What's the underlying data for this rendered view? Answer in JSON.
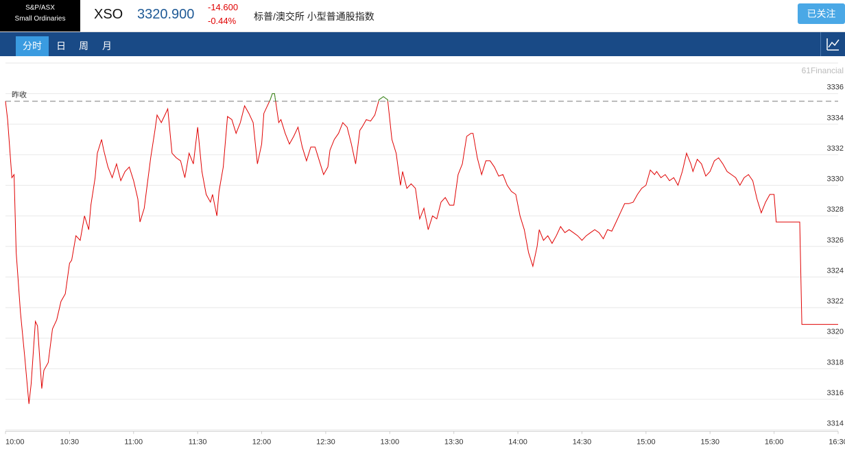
{
  "header": {
    "badge": [
      "S&P/ASX",
      "Small Ordinaries"
    ],
    "symbol": "XSO",
    "price": "3320.900",
    "change": "-14.600",
    "change_pct": "-0.44%",
    "name": "标普/澳交所 小型普通股指数",
    "button": "已关注"
  },
  "tabs": [
    "分时",
    "日",
    "周",
    "月"
  ],
  "watermark": "61Financial",
  "chart_data": {
    "type": "line",
    "xlim": [
      "10:00",
      "16:30"
    ],
    "xticks": [
      "10:00",
      "10:30",
      "11:00",
      "11:30",
      "12:00",
      "12:30",
      "13:00",
      "13:30",
      "14:00",
      "14:30",
      "15:00",
      "15:30",
      "16:00",
      "16:30"
    ],
    "ylim": [
      3314,
      3338
    ],
    "yticks": [
      3314,
      3316,
      3318,
      3320,
      3322,
      3324,
      3326,
      3328,
      3330,
      3332,
      3334,
      3336
    ],
    "grid": true,
    "reference_line": {
      "label": "昨收",
      "value": 3335.5,
      "color": "#888888"
    },
    "x": [
      "10:00",
      "10:01",
      "10:03",
      "10:04",
      "10:05",
      "10:07",
      "10:09",
      "10:11",
      "10:12",
      "10:14",
      "10:15",
      "10:17",
      "10:18",
      "10:20",
      "10:22",
      "10:24",
      "10:26",
      "10:28",
      "10:30",
      "10:31",
      "10:33",
      "10:35",
      "10:37",
      "10:39",
      "10:40",
      "10:42",
      "10:43",
      "10:45",
      "10:46",
      "10:48",
      "10:50",
      "10:52",
      "10:54",
      "10:56",
      "10:58",
      "11:00",
      "11:02",
      "11:03",
      "11:05",
      "11:06",
      "11:08",
      "11:10",
      "11:11",
      "11:13",
      "11:15",
      "11:16",
      "11:18",
      "11:20",
      "11:22",
      "11:24",
      "11:26",
      "11:28",
      "11:30",
      "11:32",
      "11:34",
      "11:36",
      "11:37",
      "11:39",
      "11:40",
      "11:42",
      "11:44",
      "11:46",
      "11:48",
      "11:50",
      "11:52",
      "11:54",
      "11:56",
      "11:58",
      "12:00",
      "12:01",
      "12:04",
      "12:05",
      "12:06",
      "12:08",
      "12:09",
      "12:11",
      "12:13",
      "12:15",
      "12:17",
      "12:19",
      "12:21",
      "12:23",
      "12:25",
      "12:27",
      "12:29",
      "12:31",
      "12:32",
      "12:34",
      "12:36",
      "12:38",
      "12:40",
      "12:42",
      "12:44",
      "12:46",
      "12:47",
      "12:49",
      "12:51",
      "12:53",
      "12:55",
      "12:57",
      "12:59",
      "13:01",
      "13:03",
      "13:05",
      "13:06",
      "13:08",
      "13:10",
      "13:12",
      "13:14",
      "13:16",
      "13:18",
      "13:20",
      "13:22",
      "13:24",
      "13:26",
      "13:28",
      "13:30",
      "13:32",
      "13:34",
      "13:36",
      "13:38",
      "13:39",
      "13:41",
      "13:43",
      "13:45",
      "13:47",
      "13:49",
      "13:51",
      "13:53",
      "13:55",
      "13:57",
      "13:59",
      "14:01",
      "14:03",
      "14:05",
      "14:07",
      "14:09",
      "14:10",
      "14:12",
      "14:14",
      "14:16",
      "14:18",
      "14:20",
      "14:22",
      "14:24",
      "14:26",
      "14:28",
      "14:30",
      "14:32",
      "14:34",
      "14:36",
      "14:38",
      "14:40",
      "14:42",
      "14:44",
      "14:46",
      "14:48",
      "14:50",
      "14:52",
      "14:54",
      "14:56",
      "14:58",
      "15:00",
      "15:02",
      "15:04",
      "15:05",
      "15:07",
      "15:09",
      "15:11",
      "15:13",
      "15:15",
      "15:17",
      "15:19",
      "15:21",
      "15:22",
      "15:24",
      "15:26",
      "15:28",
      "15:30",
      "15:32",
      "15:34",
      "15:36",
      "15:38",
      "15:40",
      "15:42",
      "15:44",
      "15:46",
      "15:48",
      "15:50",
      "15:52",
      "15:54",
      "15:56",
      "15:58",
      "16:00",
      "16:01",
      "16:03",
      "16:12",
      "16:13",
      "16:30"
    ],
    "series": [
      {
        "name": "XSO",
        "color": "#e00000",
        "up_color": "#2a9d2a",
        "values": [
          3335.5,
          3334.3,
          3330.5,
          3330.7,
          3325.6,
          3321.7,
          3318.8,
          3315.7,
          3317.0,
          3321.1,
          3320.8,
          3316.7,
          3317.9,
          3318.4,
          3320.6,
          3321.2,
          3322.4,
          3322.9,
          3324.9,
          3325.1,
          3326.7,
          3326.4,
          3328.0,
          3327.1,
          3328.7,
          3330.5,
          3332.1,
          3333.0,
          3332.3,
          3331.2,
          3330.5,
          3331.4,
          3330.3,
          3330.9,
          3331.2,
          3330.3,
          3329.1,
          3327.6,
          3328.5,
          3329.6,
          3331.8,
          3333.6,
          3334.6,
          3334.1,
          3334.7,
          3335.0,
          3332.1,
          3331.8,
          3331.6,
          3330.5,
          3332.1,
          3331.4,
          3333.8,
          3330.9,
          3329.4,
          3328.9,
          3329.4,
          3328.0,
          3329.6,
          3331.2,
          3334.5,
          3334.3,
          3333.4,
          3334.1,
          3335.2,
          3334.7,
          3334.1,
          3331.4,
          3332.7,
          3334.7,
          3335.6,
          3336.0,
          3336.0,
          3334.1,
          3334.3,
          3333.4,
          3332.7,
          3333.2,
          3333.8,
          3332.5,
          3331.6,
          3332.5,
          3332.5,
          3331.6,
          3330.7,
          3331.2,
          3332.3,
          3333.0,
          3333.4,
          3334.1,
          3333.8,
          3332.7,
          3331.4,
          3333.6,
          3333.8,
          3334.3,
          3334.2,
          3334.6,
          3335.6,
          3335.8,
          3335.6,
          3333.0,
          3332.1,
          3330.0,
          3330.9,
          3329.8,
          3330.1,
          3329.8,
          3327.8,
          3328.5,
          3327.1,
          3328.0,
          3327.8,
          3328.9,
          3329.2,
          3328.7,
          3328.7,
          3330.7,
          3331.4,
          3333.2,
          3333.4,
          3333.4,
          3331.8,
          3330.7,
          3331.6,
          3331.6,
          3331.2,
          3330.6,
          3330.7,
          3330.0,
          3329.6,
          3329.4,
          3328.0,
          3327.1,
          3325.6,
          3324.7,
          3326.0,
          3327.1,
          3326.4,
          3326.7,
          3326.2,
          3326.7,
          3327.3,
          3326.9,
          3327.1,
          3326.9,
          3326.7,
          3326.4,
          3326.7,
          3326.9,
          3327.1,
          3326.9,
          3326.5,
          3327.1,
          3327.0,
          3327.6,
          3328.2,
          3328.8,
          3328.8,
          3328.9,
          3329.4,
          3329.8,
          3330.0,
          3331.0,
          3330.7,
          3330.9,
          3330.5,
          3330.7,
          3330.3,
          3330.5,
          3330.0,
          3330.9,
          3332.1,
          3331.4,
          3330.9,
          3331.7,
          3331.4,
          3330.6,
          3330.9,
          3331.6,
          3331.8,
          3331.4,
          3330.9,
          3330.7,
          3330.5,
          3330.0,
          3330.5,
          3330.7,
          3330.3,
          3329.1,
          3328.2,
          3328.9,
          3329.4,
          3329.4,
          3327.6,
          3327.6,
          3327.6,
          3320.9,
          3320.9
        ]
      }
    ]
  }
}
